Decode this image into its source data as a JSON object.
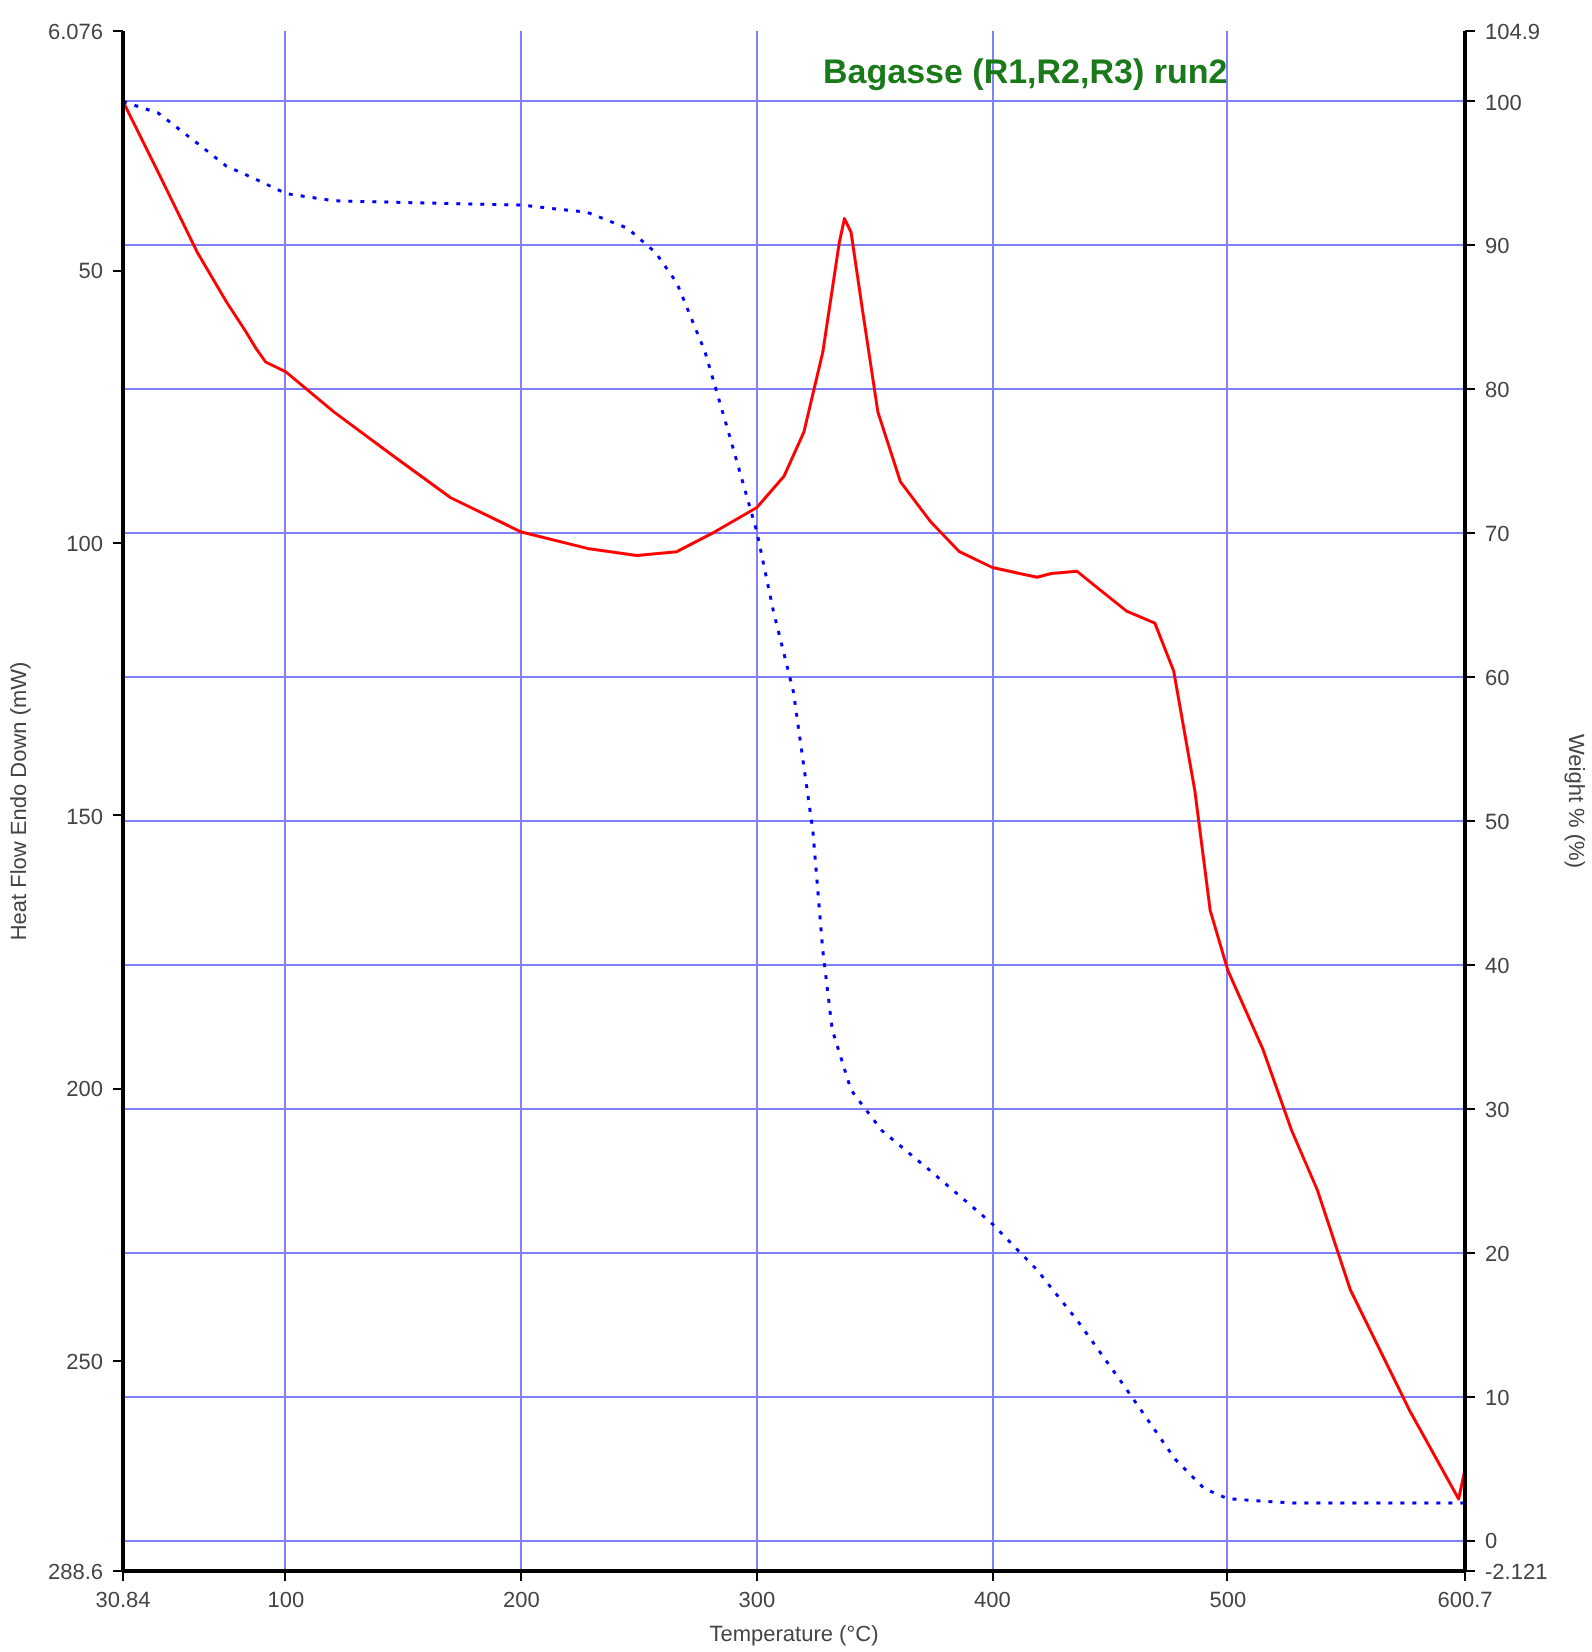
{
  "chart_data": {
    "type": "line",
    "title": "Bagasse (R1,R2,R3) run2",
    "xlabel": "Temperature (°C)",
    "ylabel": "Heat Flow Endo Down (mW)",
    "y2label": "Weight % (%)",
    "xlim": [
      30.84,
      600.7
    ],
    "xticks": [
      30.84,
      100,
      200,
      300,
      400,
      500,
      600.7
    ],
    "ylim": [
      288.6,
      6.076
    ],
    "yticks": [
      6.076,
      50,
      100,
      150,
      200,
      250,
      288.6
    ],
    "y2lim": [
      -2.121,
      104.9
    ],
    "y2ticks": [
      -2.121,
      0,
      10,
      20,
      30,
      40,
      50,
      60,
      70,
      80,
      90,
      100,
      104.9
    ],
    "grid": true,
    "series": [
      {
        "color": "#ff0000",
        "line_style": "solid",
        "x": [
          30.84,
          45.8,
          62.4,
          74.8,
          83.1,
          87.3,
          91.4,
          100,
          120.5,
          145.5,
          170,
          200,
          228,
          249,
          266,
          282,
          300,
          311.6,
          320,
          328,
          335,
          337.2,
          340,
          345,
          351.4,
          361,
          373.6,
          386,
          400,
          419,
          425,
          436,
          444,
          457,
          469,
          477,
          486,
          492.5,
          500,
          515,
          527,
          538,
          552,
          577,
          598,
          600.7
        ],
        "values": [
          19,
          32,
          46.7,
          55.8,
          61.3,
          64.3,
          66.8,
          68.6,
          76,
          84,
          91.7,
          98,
          101,
          102.3,
          101.6,
          98,
          93.5,
          87.7,
          79.6,
          65,
          44.9,
          40.5,
          43,
          57.7,
          76,
          88.8,
          96,
          101.6,
          104.5,
          106.3,
          105.6,
          105.2,
          108,
          112.5,
          114.7,
          123.5,
          145.5,
          167.4,
          178.4,
          193,
          207.7,
          218.7,
          237,
          259,
          275.4,
          270
        ]
      },
      {
        "color": "#0000ff",
        "line_style": "dotted",
        "axis": "y2",
        "x": [
          30.84,
          45.8,
          62.4,
          74.8,
          87.3,
          100,
          120.5,
          145.5,
          200,
          228,
          245,
          257,
          266,
          278,
          288,
          300,
          307,
          315.5,
          323.8,
          328,
          332,
          340,
          353,
          373.6,
          400,
          419,
          436,
          457,
          477.6,
          490,
          500,
          527,
          600.7
        ],
        "values": [
          100,
          99.2,
          97.1,
          95.5,
          94.6,
          93.6,
          93.1,
          93,
          92.8,
          92.3,
          91.2,
          89.5,
          87.4,
          82.6,
          77,
          70.1,
          64.6,
          59,
          49.3,
          41,
          35.5,
          31.3,
          28.5,
          25.7,
          22,
          18.8,
          15.3,
          10.5,
          5.65,
          3.6,
          2.9,
          2.6,
          2.6
        ]
      }
    ]
  }
}
